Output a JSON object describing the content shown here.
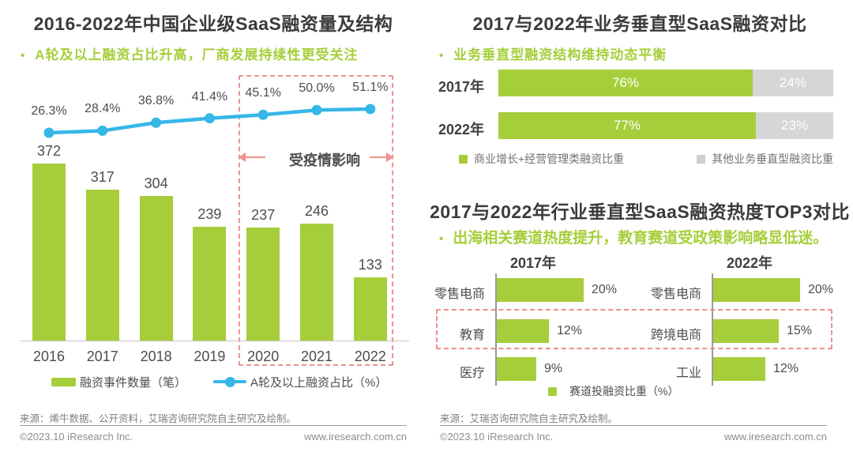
{
  "colors": {
    "green": "#a6ce3a",
    "blue": "#35b7e8",
    "gray_bar": "#d6d6d6",
    "pink": "#f0908c",
    "title_text": "#3b3b3b",
    "label_text": "#4d4d4d"
  },
  "chart_data": [
    {
      "type": "bar+line",
      "title": "2016-2022年中国企业级SaaS融资量及结构",
      "subtitle": "A轮及以上融资占比升高，厂商发展持续性更受关注",
      "categories": [
        "2016",
        "2017",
        "2018",
        "2019",
        "2020",
        "2021",
        "2022"
      ],
      "series": [
        {
          "name": "融资事件数量（笔）",
          "type": "bar",
          "color": "#a6ce3a",
          "values": [
            372,
            317,
            304,
            239,
            237,
            246,
            133
          ]
        },
        {
          "name": "A轮及以上融资占比（%）",
          "type": "line",
          "color": "#35b7e8",
          "values": [
            26.3,
            28.4,
            36.8,
            41.4,
            45.1,
            50.0,
            51.1
          ],
          "labels": [
            "26.3%",
            "28.4%",
            "36.8%",
            "41.4%",
            "45.1%",
            "50.0%",
            "51.1%"
          ]
        }
      ],
      "annotation": {
        "label": "受疫情影响",
        "applies_to": [
          "2020",
          "2021",
          "2022"
        ]
      },
      "legend_position": "bottom"
    },
    {
      "type": "stacked-bar-horizontal",
      "title": "2017与2022年业务垂直型SaaS融资对比",
      "subtitle": "业务垂直型融资结构维持动态平衡",
      "categories": [
        "2017年",
        "2022年"
      ],
      "x_range": [
        0,
        100
      ],
      "series": [
        {
          "name": "商业增长+经营管理类融资比重",
          "color": "#a6ce3a",
          "values": [
            76,
            77
          ],
          "labels": [
            "76%",
            "77%"
          ]
        },
        {
          "name": "其他业务垂直型融资比重",
          "color": "#d6d6d6",
          "values": [
            24,
            23
          ],
          "labels": [
            "24%",
            "23%"
          ]
        }
      ]
    },
    {
      "type": "bar-horizontal-grouped",
      "title": "2017与2022年行业垂直型SaaS融资热度TOP3对比",
      "subtitle": "出海相关赛道热度提升，教育赛道受政策影响略显低迷。",
      "groups": [
        {
          "name": "2017年",
          "categories": [
            "零售电商",
            "教育",
            "医疗"
          ],
          "values": [
            20,
            12,
            9
          ],
          "labels": [
            "20%",
            "12%",
            "9%"
          ]
        },
        {
          "name": "2022年",
          "categories": [
            "零售电商",
            "跨境电商",
            "工业"
          ],
          "values": [
            20,
            15,
            12
          ],
          "labels": [
            "20%",
            "15%",
            "12%"
          ]
        }
      ],
      "legend": "赛道投融资比重（%）",
      "highlight": {
        "row_index": 1,
        "style": "dashed-box"
      }
    }
  ],
  "footers": {
    "left": {
      "source": "来源：烯牛数据、公开资料，艾瑞咨询研究院自主研究及绘制。",
      "copyright": "©2023.10 iResearch Inc.",
      "website": "www.iresearch.com.cn"
    },
    "right": {
      "source": "来源：艾瑞咨询研究院自主研究及绘制。",
      "copyright": "©2023.10 iResearch Inc.",
      "website": "www.iresearch.com.cn"
    }
  }
}
